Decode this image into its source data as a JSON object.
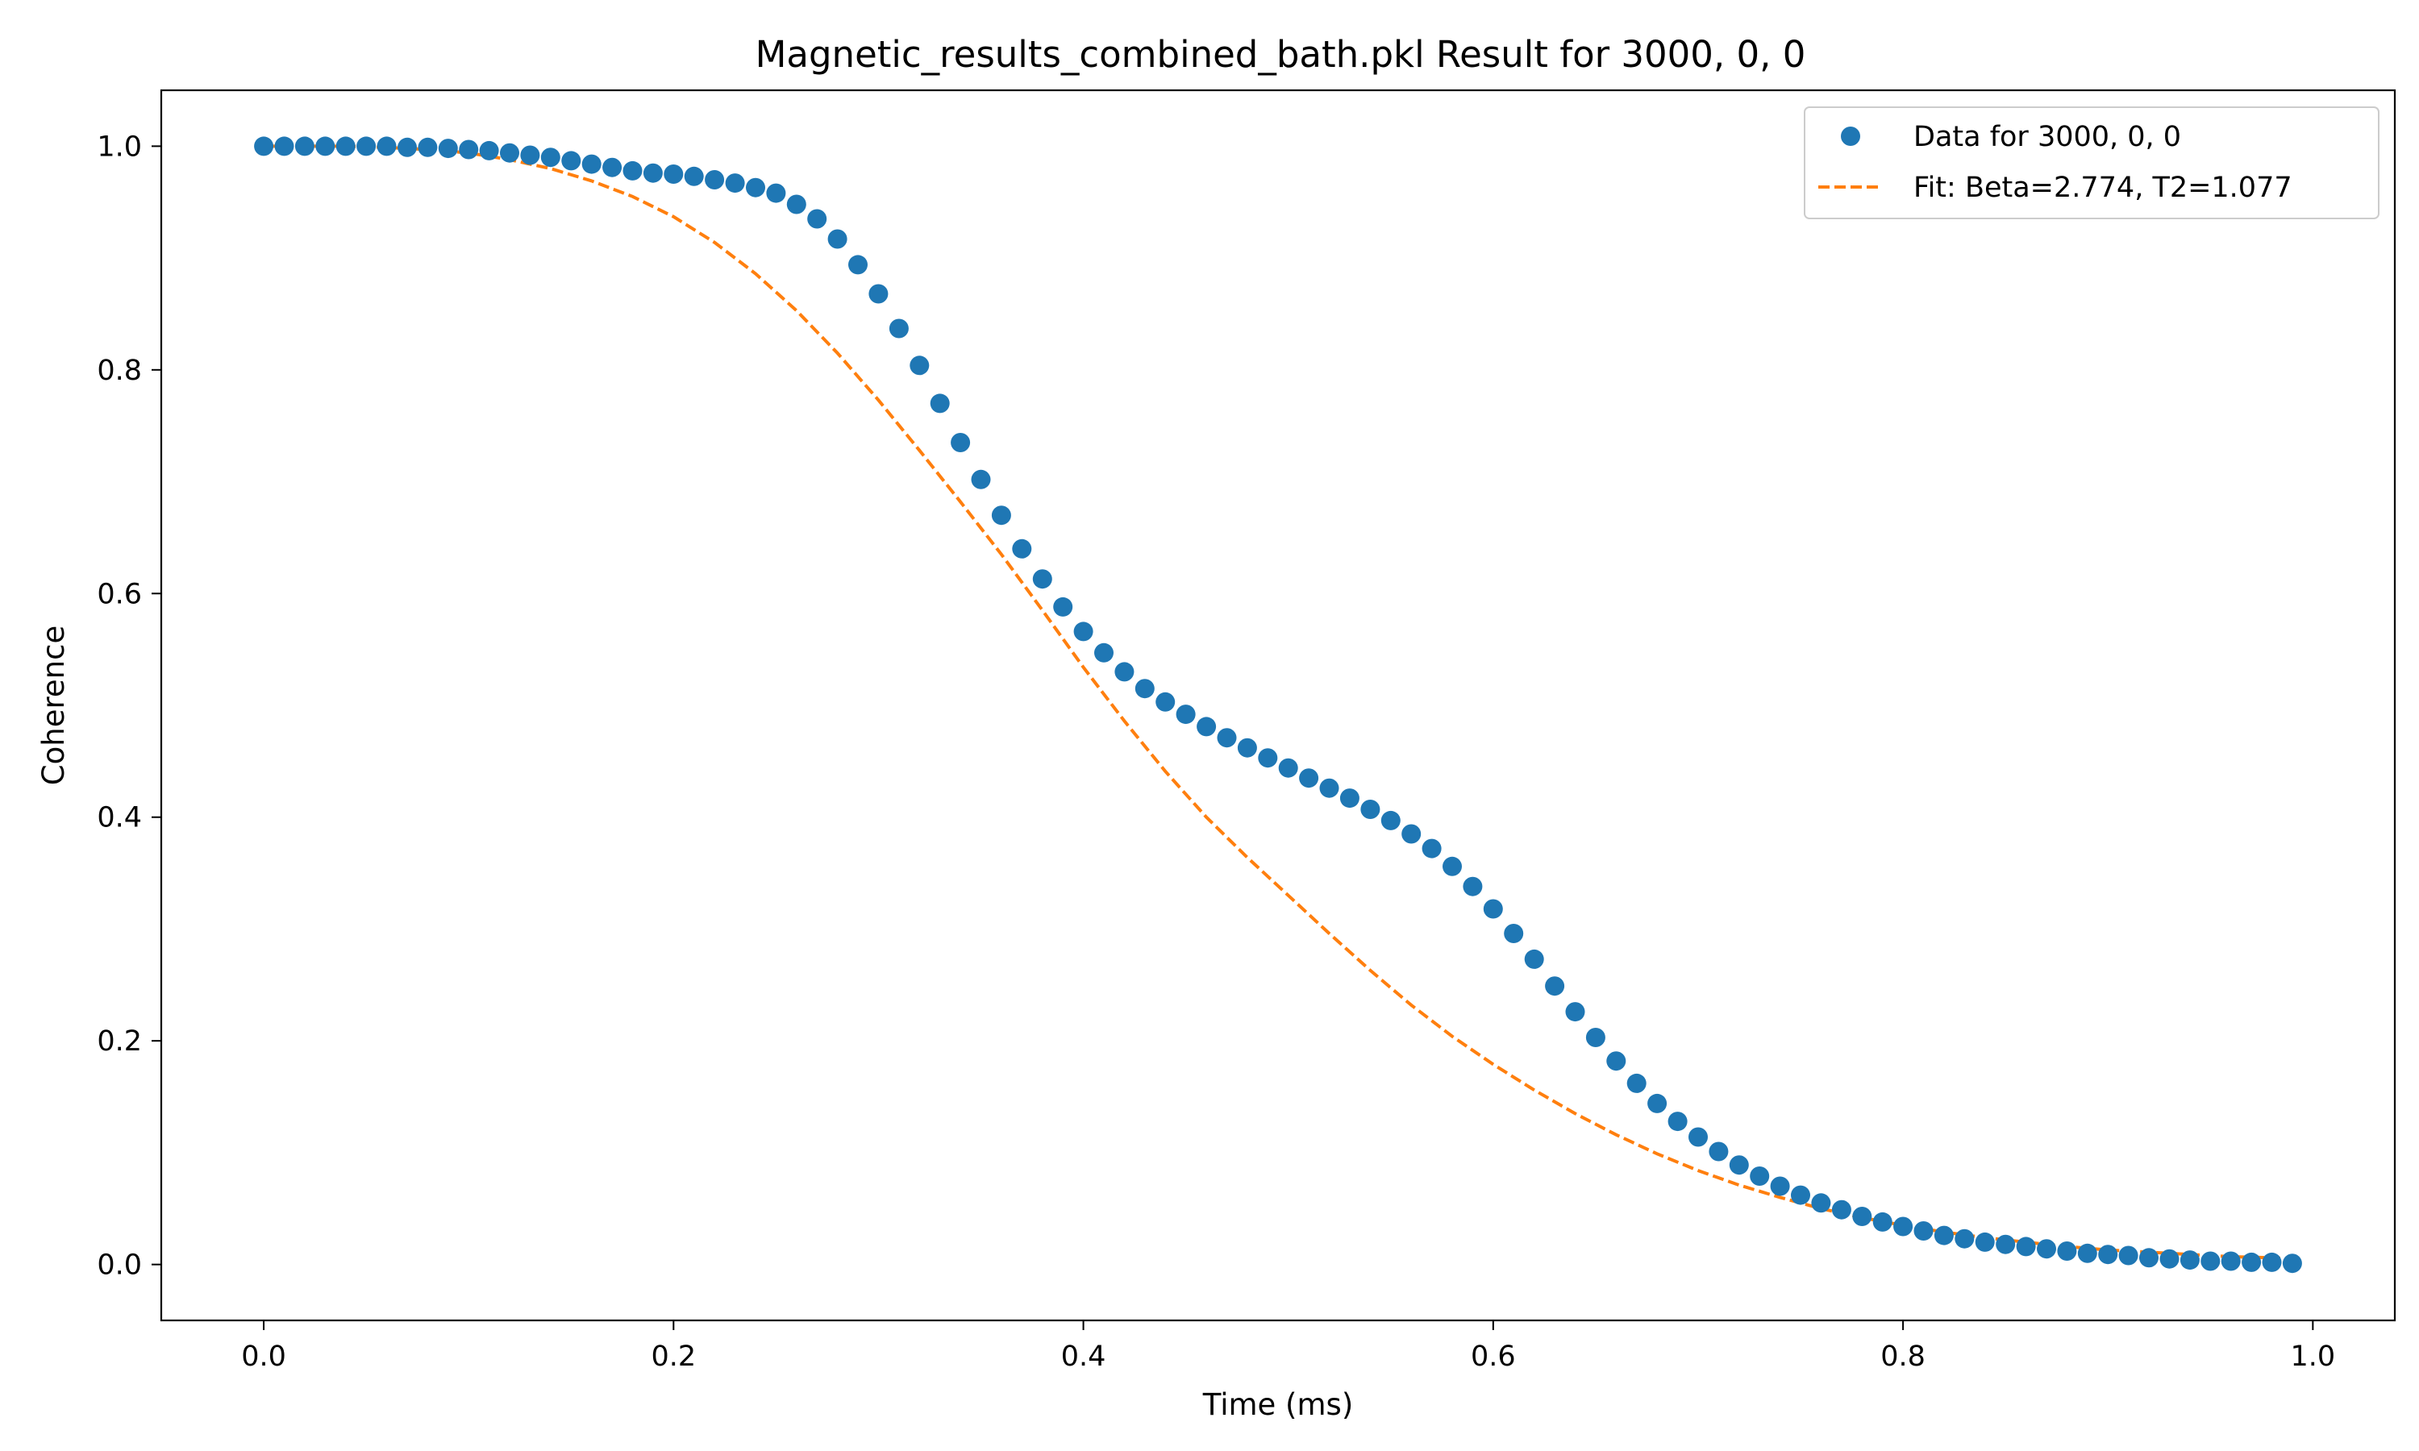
{
  "chart_data": {
    "type": "scatter",
    "title": "Magnetic_results_combined_bath.pkl Result for 3000, 0, 0",
    "xlabel": "Time (ms)",
    "ylabel": "Coherence",
    "xlim": [
      -0.05,
      1.04
    ],
    "ylim": [
      -0.05,
      1.05
    ],
    "xticks": [
      0.0,
      0.2,
      0.4,
      0.6,
      0.8,
      1.0
    ],
    "xtick_labels": [
      "0.0",
      "0.2",
      "0.4",
      "0.6",
      "0.8",
      "1.0"
    ],
    "yticks": [
      0.0,
      0.2,
      0.4,
      0.6,
      0.8,
      1.0
    ],
    "ytick_labels": [
      "0.0",
      "0.2",
      "0.4",
      "0.6",
      "0.8",
      "1.0"
    ],
    "grid": false,
    "legend_position": "top-right",
    "x": [
      0.0,
      0.01,
      0.02,
      0.03,
      0.04,
      0.05,
      0.06,
      0.07,
      0.08,
      0.09,
      0.1,
      0.11,
      0.12,
      0.13,
      0.14,
      0.15,
      0.16,
      0.17,
      0.18,
      0.19,
      0.2,
      0.21,
      0.22,
      0.23,
      0.24,
      0.25,
      0.26,
      0.27,
      0.28,
      0.29,
      0.3,
      0.31,
      0.32,
      0.33,
      0.34,
      0.35,
      0.36,
      0.37,
      0.38,
      0.39,
      0.4,
      0.41,
      0.42,
      0.43,
      0.44,
      0.45,
      0.46,
      0.47,
      0.48,
      0.49,
      0.5,
      0.51,
      0.52,
      0.53,
      0.54,
      0.55,
      0.56,
      0.57,
      0.58,
      0.59,
      0.6,
      0.61,
      0.62,
      0.63,
      0.64,
      0.65,
      0.66,
      0.67,
      0.68,
      0.69,
      0.7,
      0.71,
      0.72,
      0.73,
      0.74,
      0.75,
      0.76,
      0.77,
      0.78,
      0.79,
      0.8,
      0.81,
      0.82,
      0.83,
      0.84,
      0.85,
      0.86,
      0.87,
      0.88,
      0.89,
      0.9,
      0.91,
      0.92,
      0.93,
      0.94,
      0.95,
      0.96,
      0.97,
      0.98,
      0.99
    ],
    "series": [
      {
        "name": "Data for 3000, 0, 0",
        "kind": "scatter",
        "color": "#1f77b4",
        "y": [
          1.0,
          1.0,
          1.0,
          1.0,
          1.0,
          1.0,
          1.0,
          0.999,
          0.999,
          0.998,
          0.997,
          0.996,
          0.994,
          0.992,
          0.99,
          0.987,
          0.984,
          0.981,
          0.978,
          0.976,
          0.975,
          0.973,
          0.97,
          0.967,
          0.963,
          0.958,
          0.948,
          0.935,
          0.917,
          0.894,
          0.868,
          0.837,
          0.804,
          0.77,
          0.735,
          0.702,
          0.67,
          0.64,
          0.613,
          0.588,
          0.566,
          0.547,
          0.53,
          0.515,
          0.503,
          0.492,
          0.481,
          0.471,
          0.462,
          0.453,
          0.444,
          0.435,
          0.426,
          0.417,
          0.407,
          0.397,
          0.385,
          0.372,
          0.356,
          0.338,
          0.318,
          0.296,
          0.273,
          0.249,
          0.226,
          0.203,
          0.182,
          0.162,
          0.144,
          0.128,
          0.114,
          0.101,
          0.089,
          0.079,
          0.07,
          0.062,
          0.055,
          0.049,
          0.043,
          0.038,
          0.034,
          0.03,
          0.026,
          0.023,
          0.02,
          0.018,
          0.016,
          0.014,
          0.012,
          0.01,
          0.009,
          0.008,
          0.006,
          0.005,
          0.004,
          0.003,
          0.003,
          0.002,
          0.002,
          0.001
        ]
      },
      {
        "name": "Fit: Beta=2.774, T2=1.077",
        "kind": "line",
        "dash": "dashed",
        "color": "#ff7f0e",
        "x": [
          0.0,
          0.02,
          0.04,
          0.06,
          0.08,
          0.1,
          0.12,
          0.14,
          0.16,
          0.18,
          0.2,
          0.22,
          0.24,
          0.26,
          0.28,
          0.3,
          0.32,
          0.34,
          0.36,
          0.38,
          0.4,
          0.42,
          0.44,
          0.46,
          0.48,
          0.5,
          0.52,
          0.54,
          0.56,
          0.58,
          0.6,
          0.62,
          0.64,
          0.66,
          0.68,
          0.7,
          0.72,
          0.74,
          0.76,
          0.78,
          0.8,
          0.82,
          0.84,
          0.86,
          0.88,
          0.9,
          0.92,
          0.94,
          0.96,
          0.98,
          0.99
        ],
        "y": [
          1.0,
          1.0,
          1.0,
          0.999,
          0.997,
          0.994,
          0.988,
          0.98,
          0.969,
          0.955,
          0.937,
          0.914,
          0.886,
          0.853,
          0.815,
          0.773,
          0.728,
          0.682,
          0.635,
          0.585,
          0.534,
          0.486,
          0.441,
          0.4,
          0.364,
          0.33,
          0.296,
          0.263,
          0.232,
          0.204,
          0.179,
          0.156,
          0.135,
          0.116,
          0.099,
          0.084,
          0.071,
          0.06,
          0.05,
          0.042,
          0.035,
          0.029,
          0.024,
          0.02,
          0.016,
          0.013,
          0.011,
          0.009,
          0.007,
          0.006,
          0.005
        ]
      }
    ]
  }
}
